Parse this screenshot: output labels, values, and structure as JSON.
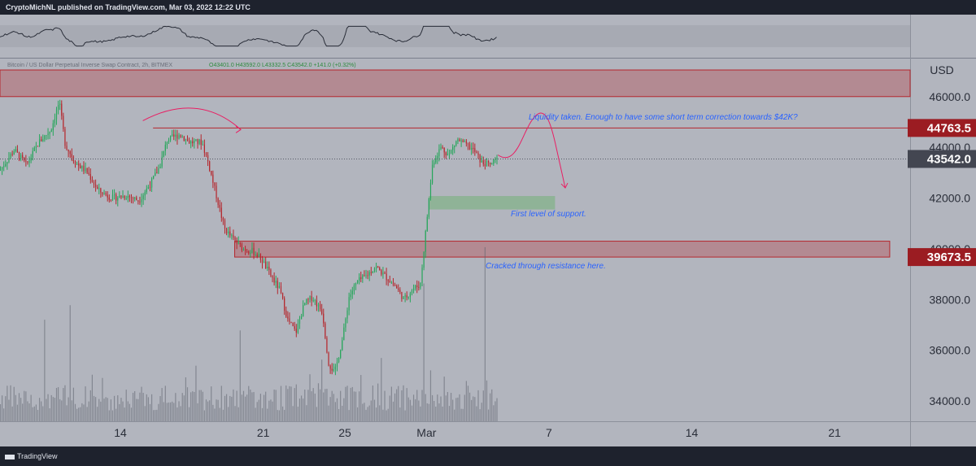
{
  "header": {
    "publisher": "CryptoMichNL published on TradingView.com, Mar 03, 2022 12:22 UTC"
  },
  "legend": {
    "symbol": "Bitcoin / US Dollar Perpetual Inverse Swap Contract, 2h, BITMEX",
    "ohlc": "O43401.0 H43592.0 L43332.5 C43542.0 +141.0 (+0.32%)"
  },
  "axis": {
    "currency": "USD"
  },
  "brand": "TradingView",
  "colors": {
    "up": "#26a65b",
    "down": "#b5272d",
    "resistance": "#b5272d",
    "support": "#4caf50",
    "annotation": "#2962ff",
    "arrow": "#e91e63",
    "panel": "#b2b5be"
  },
  "annotations": {
    "liquidity": "Liquidity taken. Enough to have some short term correction towards $42K?",
    "support": "First level of support.",
    "resistance": "Cracked through resistance here."
  },
  "chart_data": {
    "type": "candlestick",
    "timeframe": "2h",
    "y_ticks": [
      46000,
      44000,
      42000,
      40000,
      38000,
      36000,
      34000
    ],
    "y_tick_labels": [
      "46000.0",
      "44000.0",
      "42000.0",
      "40000.0",
      "38000.0",
      "36000.0",
      "34000.0"
    ],
    "ylim": [
      33200,
      47500
    ],
    "x_ticks": [
      {
        "label": "14",
        "day": 14
      },
      {
        "label": "21",
        "day": 21
      },
      {
        "label": "25",
        "day": 25
      },
      {
        "label": "Mar",
        "day": 29
      },
      {
        "label": "7",
        "day": 35
      },
      {
        "label": "14",
        "day": 42
      },
      {
        "label": "21",
        "day": 49
      }
    ],
    "xlim_days": [
      8.1,
      52.7
    ],
    "last_price": {
      "value": 43542.0,
      "label": "43542.0"
    },
    "price_tags": [
      {
        "value": 44763.5,
        "label": "44763.5"
      },
      {
        "value": 39673.5,
        "label": "39673.5"
      }
    ],
    "zones": [
      {
        "name": "resistance-top",
        "from_day": 8.1,
        "to_day": 52.7,
        "low": 46000,
        "high": 47050
      },
      {
        "name": "resistance-cracked",
        "from_day": 19.6,
        "to_day": 51.7,
        "low": 39673.5,
        "high": 40300
      },
      {
        "name": "support",
        "from_day": 29.1,
        "to_day": 35.3,
        "low": 41550,
        "high": 42080
      }
    ],
    "liquidity_line": {
      "value": 44763.5,
      "from_day": 15.6,
      "to_day": 52.7
    },
    "price_path": [
      [
        8.1,
        43100
      ],
      [
        8.8,
        43900
      ],
      [
        9.4,
        43300
      ],
      [
        10.0,
        44200
      ],
      [
        10.6,
        44700
      ],
      [
        11.0,
        45800
      ],
      [
        11.3,
        44100
      ],
      [
        11.8,
        43400
      ],
      [
        12.4,
        43000
      ],
      [
        12.9,
        42300
      ],
      [
        13.6,
        42000
      ],
      [
        14.3,
        42100
      ],
      [
        14.9,
        41900
      ],
      [
        15.5,
        42600
      ],
      [
        15.9,
        43200
      ],
      [
        16.3,
        44300
      ],
      [
        16.9,
        44500
      ],
      [
        17.4,
        44200
      ],
      [
        18.0,
        44200
      ],
      [
        18.3,
        43400
      ],
      [
        18.7,
        42100
      ],
      [
        19.1,
        40800
      ],
      [
        19.5,
        40400
      ],
      [
        20.0,
        40000
      ],
      [
        20.5,
        39900
      ],
      [
        20.9,
        39600
      ],
      [
        21.4,
        38900
      ],
      [
        21.8,
        38400
      ],
      [
        22.2,
        37200
      ],
      [
        22.6,
        36700
      ],
      [
        23.0,
        37800
      ],
      [
        23.4,
        38100
      ],
      [
        23.9,
        37500
      ],
      [
        24.2,
        35500
      ],
      [
        24.5,
        35100
      ],
      [
        24.9,
        36500
      ],
      [
        25.2,
        38100
      ],
      [
        25.6,
        38700
      ],
      [
        26.0,
        38900
      ],
      [
        26.5,
        39300
      ],
      [
        27.0,
        38900
      ],
      [
        27.5,
        38500
      ],
      [
        27.9,
        38000
      ],
      [
        28.3,
        38400
      ],
      [
        28.7,
        38600
      ],
      [
        29.0,
        41000
      ],
      [
        29.3,
        43400
      ],
      [
        29.7,
        44000
      ],
      [
        30.1,
        43700
      ],
      [
        30.5,
        44300
      ],
      [
        30.9,
        44100
      ],
      [
        31.3,
        43900
      ],
      [
        31.7,
        43400
      ],
      [
        32.1,
        43300
      ],
      [
        32.5,
        43542
      ]
    ],
    "volume_spikes": [
      [
        10.3,
        0.28
      ],
      [
        11.5,
        0.32
      ],
      [
        19.9,
        0.19
      ],
      [
        23.9,
        0.17
      ],
      [
        28.9,
        0.38
      ],
      [
        31.9,
        0.48
      ]
    ]
  }
}
